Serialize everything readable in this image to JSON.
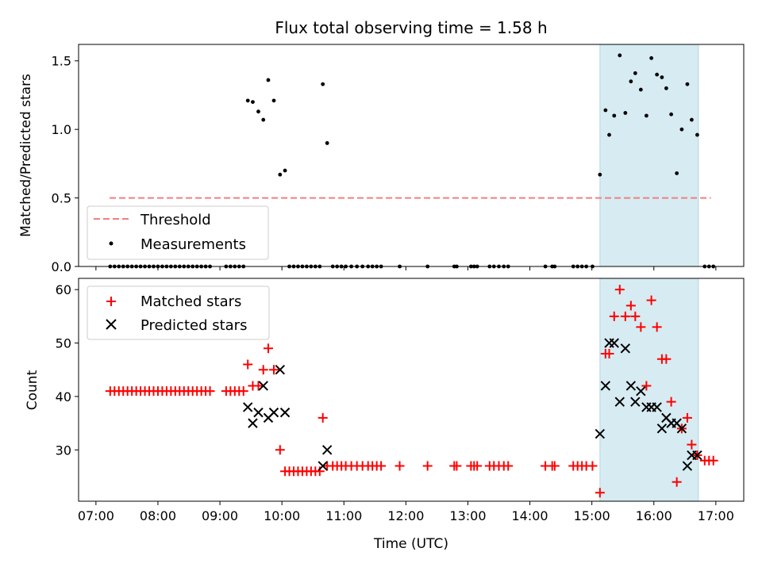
{
  "chart_data": [
    {
      "type": "scatter",
      "title": "Flux total observing time = 1.58 h",
      "xlabel": "",
      "ylabel": "Matched/Predicted stars",
      "xlim": [
        6.72,
        17.45
      ],
      "ylim": [
        0,
        1.62
      ],
      "x_ticks": [
        7,
        8,
        9,
        10,
        11,
        12,
        13,
        14,
        15,
        16,
        17
      ],
      "y_ticks": [
        0.0,
        0.5,
        1.0,
        1.5
      ],
      "y_tick_labels": [
        "0.0",
        "0.5",
        "1.0",
        "1.5"
      ],
      "highlight_span": [
        15.13,
        16.72
      ],
      "threshold": {
        "name": "Threshold",
        "value": 0.5,
        "x": [
          7.22,
          16.92
        ],
        "color": "#f08080"
      },
      "legend": [
        "Threshold",
        "Measurements"
      ],
      "legend_position": "lower-left",
      "series": [
        {
          "name": "Measurements",
          "marker": "dot",
          "color": "#000000",
          "points": [
            [
              7.23,
              0
            ],
            [
              7.3,
              0
            ],
            [
              7.37,
              0
            ],
            [
              7.44,
              0
            ],
            [
              7.51,
              0
            ],
            [
              7.58,
              0
            ],
            [
              7.65,
              0
            ],
            [
              7.72,
              0
            ],
            [
              7.79,
              0
            ],
            [
              7.86,
              0
            ],
            [
              7.93,
              0
            ],
            [
              8.0,
              0
            ],
            [
              8.07,
              0
            ],
            [
              8.14,
              0
            ],
            [
              8.21,
              0
            ],
            [
              8.28,
              0
            ],
            [
              8.35,
              0
            ],
            [
              8.42,
              0
            ],
            [
              8.49,
              0
            ],
            [
              8.56,
              0
            ],
            [
              8.63,
              0
            ],
            [
              8.7,
              0
            ],
            [
              8.77,
              0
            ],
            [
              8.84,
              0
            ],
            [
              9.1,
              0
            ],
            [
              9.17,
              0
            ],
            [
              9.24,
              0
            ],
            [
              9.31,
              0
            ],
            [
              9.38,
              0
            ],
            [
              9.45,
              1.21
            ],
            [
              9.53,
              1.2
            ],
            [
              9.62,
              1.13
            ],
            [
              9.7,
              1.07
            ],
            [
              9.78,
              1.36
            ],
            [
              9.87,
              1.21
            ],
            [
              9.97,
              0.67
            ],
            [
              10.05,
              0.7
            ],
            [
              10.12,
              0
            ],
            [
              10.19,
              0
            ],
            [
              10.26,
              0
            ],
            [
              10.33,
              0
            ],
            [
              10.4,
              0
            ],
            [
              10.47,
              0
            ],
            [
              10.54,
              0
            ],
            [
              10.61,
              0
            ],
            [
              10.66,
              1.33
            ],
            [
              10.73,
              0.9
            ],
            [
              10.82,
              0
            ],
            [
              10.89,
              0
            ],
            [
              10.96,
              0
            ],
            [
              11.03,
              0
            ],
            [
              11.12,
              0
            ],
            [
              11.21,
              0
            ],
            [
              11.3,
              0
            ],
            [
              11.39,
              0
            ],
            [
              11.46,
              0
            ],
            [
              11.53,
              0
            ],
            [
              11.6,
              0
            ],
            [
              11.9,
              0
            ],
            [
              12.35,
              0
            ],
            [
              12.78,
              0
            ],
            [
              12.82,
              0
            ],
            [
              13.05,
              0
            ],
            [
              13.1,
              0
            ],
            [
              13.15,
              0
            ],
            [
              13.35,
              0
            ],
            [
              13.42,
              0
            ],
            [
              13.5,
              0
            ],
            [
              13.58,
              0
            ],
            [
              13.65,
              0
            ],
            [
              14.25,
              0
            ],
            [
              14.36,
              0
            ],
            [
              14.4,
              0
            ],
            [
              14.7,
              0
            ],
            [
              14.77,
              0
            ],
            [
              14.84,
              0
            ],
            [
              14.91,
              0
            ],
            [
              15.01,
              0
            ],
            [
              15.13,
              0.67
            ],
            [
              15.22,
              1.14
            ],
            [
              15.28,
              0.96
            ],
            [
              15.36,
              1.1
            ],
            [
              15.45,
              1.54
            ],
            [
              15.54,
              1.12
            ],
            [
              15.63,
              1.35
            ],
            [
              15.7,
              1.41
            ],
            [
              15.79,
              1.29
            ],
            [
              15.88,
              1.1
            ],
            [
              15.96,
              1.52
            ],
            [
              16.05,
              1.4
            ],
            [
              16.13,
              1.38
            ],
            [
              16.2,
              1.3
            ],
            [
              16.28,
              1.11
            ],
            [
              16.37,
              0.68
            ],
            [
              16.45,
              1.0
            ],
            [
              16.54,
              1.33
            ],
            [
              16.61,
              1.07
            ],
            [
              16.7,
              0.96
            ],
            [
              16.82,
              0
            ],
            [
              16.89,
              0
            ],
            [
              16.96,
              0
            ]
          ]
        }
      ]
    },
    {
      "type": "scatter",
      "title": "",
      "xlabel": "Time (UTC)",
      "ylabel": "Count",
      "xlim": [
        6.72,
        17.45
      ],
      "ylim": [
        20.4,
        62.1
      ],
      "x_ticks": [
        7,
        8,
        9,
        10,
        11,
        12,
        13,
        14,
        15,
        16,
        17
      ],
      "x_tick_labels": [
        "07:00",
        "08:00",
        "09:00",
        "10:00",
        "11:00",
        "12:00",
        "13:00",
        "14:00",
        "15:00",
        "16:00",
        "17:00"
      ],
      "y_ticks": [
        30,
        40,
        50,
        60
      ],
      "y_tick_labels": [
        "30",
        "40",
        "50",
        "60"
      ],
      "highlight_span": [
        15.13,
        16.72
      ],
      "legend": [
        "Matched stars",
        "Predicted stars"
      ],
      "legend_position": "upper-left",
      "series": [
        {
          "name": "Matched stars",
          "marker": "plus",
          "color": "#ff0000",
          "points": [
            [
              7.23,
              41
            ],
            [
              7.3,
              41
            ],
            [
              7.37,
              41
            ],
            [
              7.44,
              41
            ],
            [
              7.51,
              41
            ],
            [
              7.58,
              41
            ],
            [
              7.65,
              41
            ],
            [
              7.72,
              41
            ],
            [
              7.79,
              41
            ],
            [
              7.86,
              41
            ],
            [
              7.93,
              41
            ],
            [
              8.0,
              41
            ],
            [
              8.07,
              41
            ],
            [
              8.14,
              41
            ],
            [
              8.21,
              41
            ],
            [
              8.28,
              41
            ],
            [
              8.35,
              41
            ],
            [
              8.42,
              41
            ],
            [
              8.49,
              41
            ],
            [
              8.56,
              41
            ],
            [
              8.63,
              41
            ],
            [
              8.7,
              41
            ],
            [
              8.77,
              41
            ],
            [
              8.84,
              41
            ],
            [
              9.1,
              41
            ],
            [
              9.17,
              41
            ],
            [
              9.24,
              41
            ],
            [
              9.31,
              41
            ],
            [
              9.38,
              41
            ],
            [
              9.45,
              46
            ],
            [
              9.53,
              42
            ],
            [
              9.62,
              42
            ],
            [
              9.7,
              45
            ],
            [
              9.78,
              49
            ],
            [
              9.87,
              45
            ],
            [
              9.97,
              30
            ],
            [
              10.05,
              26
            ],
            [
              10.12,
              26
            ],
            [
              10.19,
              26
            ],
            [
              10.26,
              26
            ],
            [
              10.33,
              26
            ],
            [
              10.4,
              26
            ],
            [
              10.47,
              26
            ],
            [
              10.54,
              26
            ],
            [
              10.61,
              26
            ],
            [
              10.66,
              36
            ],
            [
              10.73,
              27
            ],
            [
              10.82,
              27
            ],
            [
              10.89,
              27
            ],
            [
              10.96,
              27
            ],
            [
              11.03,
              27
            ],
            [
              11.12,
              27
            ],
            [
              11.21,
              27
            ],
            [
              11.3,
              27
            ],
            [
              11.39,
              27
            ],
            [
              11.46,
              27
            ],
            [
              11.53,
              27
            ],
            [
              11.6,
              27
            ],
            [
              11.9,
              27
            ],
            [
              12.35,
              27
            ],
            [
              12.78,
              27
            ],
            [
              12.82,
              27
            ],
            [
              13.05,
              27
            ],
            [
              13.1,
              27
            ],
            [
              13.15,
              27
            ],
            [
              13.35,
              27
            ],
            [
              13.42,
              27
            ],
            [
              13.5,
              27
            ],
            [
              13.58,
              27
            ],
            [
              13.65,
              27
            ],
            [
              14.25,
              27
            ],
            [
              14.36,
              27
            ],
            [
              14.4,
              27
            ],
            [
              14.7,
              27
            ],
            [
              14.77,
              27
            ],
            [
              14.84,
              27
            ],
            [
              14.91,
              27
            ],
            [
              15.01,
              27
            ],
            [
              15.13,
              22
            ],
            [
              15.22,
              48
            ],
            [
              15.28,
              48
            ],
            [
              15.36,
              55
            ],
            [
              15.45,
              60
            ],
            [
              15.54,
              55
            ],
            [
              15.63,
              57
            ],
            [
              15.7,
              55
            ],
            [
              15.79,
              53
            ],
            [
              15.88,
              42
            ],
            [
              15.96,
              58
            ],
            [
              16.05,
              53
            ],
            [
              16.13,
              47
            ],
            [
              16.2,
              47
            ],
            [
              16.28,
              39
            ],
            [
              16.37,
              24
            ],
            [
              16.45,
              34
            ],
            [
              16.54,
              36
            ],
            [
              16.61,
              31
            ],
            [
              16.7,
              29
            ],
            [
              16.82,
              28
            ],
            [
              16.89,
              28
            ],
            [
              16.96,
              28
            ]
          ]
        },
        {
          "name": "Predicted stars",
          "marker": "x",
          "color": "#000000",
          "points": [
            [
              9.45,
              38
            ],
            [
              9.53,
              35
            ],
            [
              9.62,
              37
            ],
            [
              9.7,
              42
            ],
            [
              9.78,
              36
            ],
            [
              9.87,
              37
            ],
            [
              9.97,
              45
            ],
            [
              10.05,
              37
            ],
            [
              10.66,
              27
            ],
            [
              10.73,
              30
            ],
            [
              15.13,
              33
            ],
            [
              15.22,
              42
            ],
            [
              15.28,
              50
            ],
            [
              15.36,
              50
            ],
            [
              15.45,
              39
            ],
            [
              15.54,
              49
            ],
            [
              15.63,
              42
            ],
            [
              15.7,
              39
            ],
            [
              15.79,
              41
            ],
            [
              15.88,
              38
            ],
            [
              15.96,
              38
            ],
            [
              16.05,
              38
            ],
            [
              16.13,
              34
            ],
            [
              16.2,
              36
            ],
            [
              16.28,
              35
            ],
            [
              16.37,
              35
            ],
            [
              16.45,
              34
            ],
            [
              16.54,
              27
            ],
            [
              16.61,
              29
            ],
            [
              16.7,
              29
            ]
          ]
        }
      ]
    }
  ]
}
